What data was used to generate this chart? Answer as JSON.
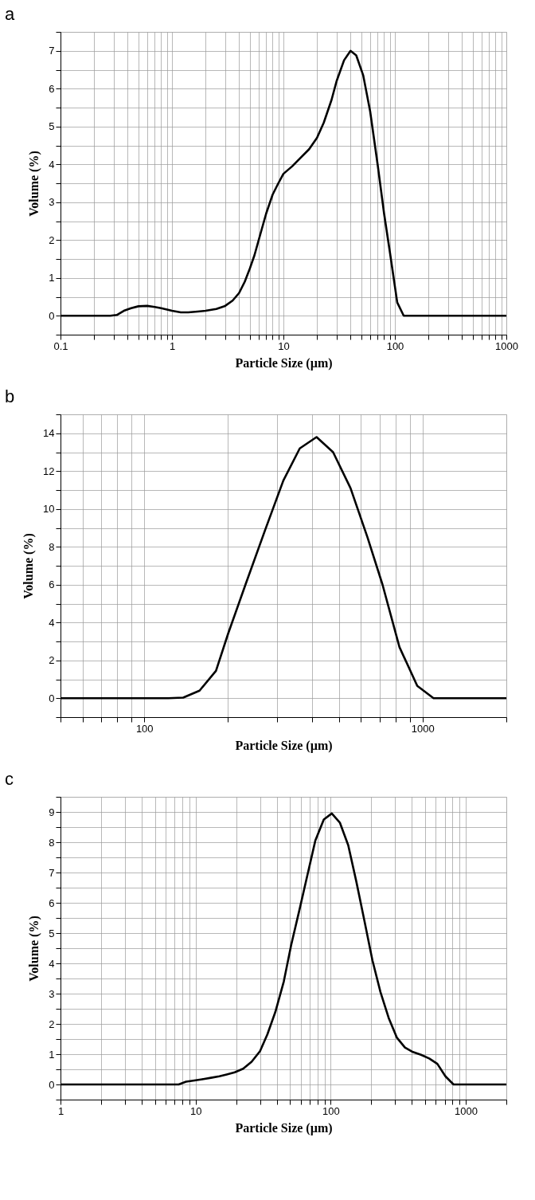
{
  "chart_data": [
    {
      "type": "line",
      "title": "a",
      "xlabel": "Particle Size (µm)",
      "ylabel": "Volume (%)",
      "log": "x",
      "grid": true,
      "marker": "none",
      "line_style": "solid",
      "xlim": [
        0.1,
        1000
      ],
      "ylim": [
        -0.5,
        7.5
      ],
      "xticks": [
        0.1,
        {
          "value": 0.2,
          "label": null
        },
        {
          "value": 0.3,
          "label": null
        },
        {
          "value": 0.4,
          "label": null
        },
        {
          "value": 0.5,
          "label": null
        },
        {
          "value": 0.6,
          "label": null
        },
        {
          "value": 0.7,
          "label": null
        },
        {
          "value": 0.8,
          "label": null
        },
        {
          "value": 0.9,
          "label": null
        },
        1,
        {
          "value": 2,
          "label": null
        },
        {
          "value": 3,
          "label": null
        },
        {
          "value": 4,
          "label": null
        },
        {
          "value": 5,
          "label": null
        },
        {
          "value": 6,
          "label": null
        },
        {
          "value": 7,
          "label": null
        },
        {
          "value": 8,
          "label": null
        },
        {
          "value": 9,
          "label": null
        },
        10,
        {
          "value": 20,
          "label": null
        },
        {
          "value": 30,
          "label": null
        },
        {
          "value": 40,
          "label": null
        },
        {
          "value": 50,
          "label": null
        },
        {
          "value": 60,
          "label": null
        },
        {
          "value": 70,
          "label": null
        },
        {
          "value": 80,
          "label": null
        },
        {
          "value": 90,
          "label": null
        },
        100,
        {
          "value": 200,
          "label": null
        },
        {
          "value": 300,
          "label": null
        },
        {
          "value": 400,
          "label": null
        },
        {
          "value": 500,
          "label": null
        },
        {
          "value": 600,
          "label": null
        },
        {
          "value": 700,
          "label": null
        },
        {
          "value": 800,
          "label": null
        },
        {
          "value": 900,
          "label": null
        },
        1000
      ],
      "yticks": [
        {
          "value": -0.5,
          "label": null
        },
        0,
        {
          "value": 0.5,
          "label": null
        },
        1,
        {
          "value": 1.5,
          "label": null
        },
        2,
        {
          "value": 2.5,
          "label": null
        },
        3,
        {
          "value": 3.5,
          "label": null
        },
        4,
        {
          "value": 4.5,
          "label": null
        },
        5,
        {
          "value": 5.5,
          "label": null
        },
        6,
        {
          "value": 6.5,
          "label": null
        },
        7,
        {
          "value": 7.5,
          "label": null
        }
      ],
      "series": [
        {
          "color": "#000000",
          "x": [
            0.1,
            0.28,
            0.32,
            0.37,
            0.43,
            0.5,
            0.6,
            0.7,
            0.8,
            1.0,
            1.2,
            1.4,
            1.7,
            2,
            2.5,
            3,
            3.5,
            4,
            4.5,
            5,
            5.5,
            6,
            7,
            8,
            9,
            10,
            12,
            14,
            17,
            20,
            23,
            27,
            30,
            35,
            40,
            45,
            52,
            60,
            70,
            80,
            90,
            105,
            120,
            1000
          ],
          "values": [
            0,
            0,
            0.02,
            0.13,
            0.2,
            0.25,
            0.26,
            0.23,
            0.2,
            0.13,
            0.09,
            0.09,
            0.11,
            0.13,
            0.18,
            0.26,
            0.4,
            0.6,
            0.9,
            1.25,
            1.6,
            2.0,
            2.7,
            3.2,
            3.5,
            3.75,
            3.95,
            4.15,
            4.4,
            4.7,
            5.1,
            5.7,
            6.2,
            6.75,
            7.0,
            6.88,
            6.35,
            5.4,
            4.0,
            2.7,
            1.7,
            0.35,
            0,
            0
          ]
        }
      ]
    },
    {
      "type": "line",
      "title": "b",
      "xlabel": "Particle Size (µm)",
      "ylabel": "Volume (%)",
      "log": "x",
      "grid": true,
      "marker": "none",
      "line_style": "solid",
      "xlim": [
        50,
        2000
      ],
      "ylim": [
        -1,
        15
      ],
      "xticks": [
        {
          "value": 50,
          "label": null
        },
        {
          "value": 60,
          "label": null
        },
        {
          "value": 70,
          "label": null
        },
        {
          "value": 80,
          "label": null
        },
        {
          "value": 90,
          "label": null
        },
        100,
        {
          "value": 200,
          "label": null
        },
        {
          "value": 300,
          "label": null
        },
        {
          "value": 400,
          "label": null
        },
        {
          "value": 500,
          "label": null
        },
        {
          "value": 600,
          "label": null
        },
        {
          "value": 700,
          "label": null
        },
        {
          "value": 800,
          "label": null
        },
        {
          "value": 900,
          "label": null
        },
        1000,
        {
          "value": 2000,
          "label": null
        }
      ],
      "yticks": [
        {
          "value": -1,
          "label": null
        },
        0,
        {
          "value": 1,
          "label": null
        },
        2,
        {
          "value": 3,
          "label": null
        },
        4,
        {
          "value": 5,
          "label": null
        },
        6,
        {
          "value": 7,
          "label": null
        },
        8,
        {
          "value": 9,
          "label": null
        },
        10,
        {
          "value": 11,
          "label": null
        },
        12,
        {
          "value": 13,
          "label": null
        },
        14,
        {
          "value": 15,
          "label": null
        }
      ],
      "series": [
        {
          "color": "#000000",
          "x": [
            50,
            122,
            138,
            158,
            181,
            200,
            231,
            272,
            316,
            362,
            416,
            477,
            551,
            634,
            718,
            826,
            957,
            1095,
            2000
          ],
          "values": [
            0,
            0,
            0.03,
            0.4,
            1.45,
            3.4,
            6.0,
            8.9,
            11.5,
            13.2,
            13.8,
            13.0,
            11.1,
            8.5,
            6.0,
            2.7,
            0.65,
            0,
            0
          ]
        }
      ]
    },
    {
      "type": "line",
      "title": "c",
      "xlabel": "Particle Size (µm)",
      "ylabel": "Volume (%)",
      "log": "x",
      "grid": true,
      "marker": "none",
      "line_style": "solid",
      "xlim": [
        1,
        2000
      ],
      "ylim": [
        -0.5,
        9.5
      ],
      "xticks": [
        1,
        {
          "value": 2,
          "label": null
        },
        {
          "value": 3,
          "label": null
        },
        {
          "value": 4,
          "label": null
        },
        {
          "value": 5,
          "label": null
        },
        {
          "value": 6,
          "label": null
        },
        {
          "value": 7,
          "label": null
        },
        {
          "value": 8,
          "label": null
        },
        {
          "value": 9,
          "label": null
        },
        10,
        {
          "value": 20,
          "label": null
        },
        {
          "value": 30,
          "label": null
        },
        {
          "value": 40,
          "label": null
        },
        {
          "value": 50,
          "label": null
        },
        {
          "value": 60,
          "label": null
        },
        {
          "value": 70,
          "label": null
        },
        {
          "value": 80,
          "label": null
        },
        {
          "value": 90,
          "label": null
        },
        100,
        {
          "value": 200,
          "label": null
        },
        {
          "value": 300,
          "label": null
        },
        {
          "value": 400,
          "label": null
        },
        {
          "value": 500,
          "label": null
        },
        {
          "value": 600,
          "label": null
        },
        {
          "value": 700,
          "label": null
        },
        {
          "value": 800,
          "label": null
        },
        {
          "value": 900,
          "label": null
        },
        1000,
        {
          "value": 2000,
          "label": null
        }
      ],
      "yticks": [
        {
          "value": -0.5,
          "label": null
        },
        0,
        {
          "value": 0.5,
          "label": null
        },
        1,
        {
          "value": 1.5,
          "label": null
        },
        2,
        {
          "value": 2.5,
          "label": null
        },
        3,
        {
          "value": 3.5,
          "label": null
        },
        4,
        {
          "value": 4.5,
          "label": null
        },
        5,
        {
          "value": 5.5,
          "label": null
        },
        6,
        {
          "value": 6.5,
          "label": null
        },
        7,
        {
          "value": 7.5,
          "label": null
        },
        8,
        {
          "value": 8.5,
          "label": null
        },
        9,
        {
          "value": 9.5,
          "label": null
        }
      ],
      "series": [
        {
          "color": "#000000",
          "x": [
            1,
            7.5,
            8.5,
            9.8,
            11.2,
            13,
            15,
            17,
            19.5,
            22.5,
            26,
            30,
            34,
            39,
            45,
            51,
            59,
            68,
            77,
            89,
            102,
            117,
            135,
            155,
            178,
            204,
            234,
            269,
            309,
            355,
            407,
            467,
            537,
            617,
            708,
            813,
            2000
          ],
          "values": [
            0,
            0,
            0.09,
            0.13,
            0.17,
            0.22,
            0.27,
            0.33,
            0.4,
            0.52,
            0.75,
            1.1,
            1.65,
            2.4,
            3.4,
            4.6,
            5.8,
            7.0,
            8.05,
            8.75,
            8.95,
            8.65,
            7.9,
            6.7,
            5.4,
            4.1,
            3.05,
            2.2,
            1.55,
            1.22,
            1.07,
            0.98,
            0.86,
            0.68,
            0.27,
            0,
            0
          ]
        }
      ]
    }
  ]
}
